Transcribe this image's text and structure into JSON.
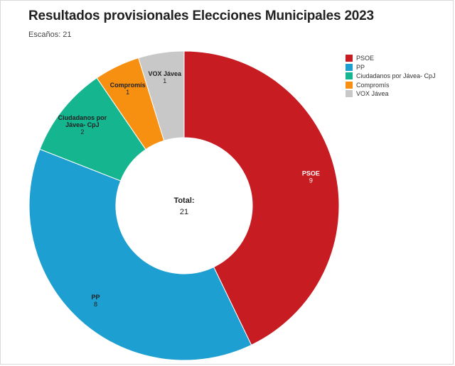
{
  "header": {
    "title": "Resultados provisionales Elecciones Municipales 2023",
    "subtitle": "Escaños: 21"
  },
  "center": {
    "label": "Total:",
    "value": "21"
  },
  "chart_data": {
    "type": "pie",
    "donut": true,
    "start_angle_deg": 0,
    "direction": "clockwise",
    "legend_position": "top-right",
    "categories": [
      "PSOE",
      "PP",
      "Ciudadanos por Jávea- CpJ",
      "Compromís",
      "VOX Jávea"
    ],
    "values": [
      9,
      8,
      2,
      1,
      1
    ],
    "slice_labels": [
      [
        "PSOE"
      ],
      [
        "PP"
      ],
      [
        "Ciudadanos por",
        "Jávea- CpJ"
      ],
      [
        "Compromís"
      ],
      [
        "VOX Jávea"
      ]
    ],
    "colors": [
      "#c71c22",
      "#1e9fd1",
      "#14b58f",
      "#f79010",
      "#c8c8c8"
    ],
    "label_colors": [
      "#ffffff",
      "#222222",
      "#222222",
      "#222222",
      "#222222"
    ]
  }
}
